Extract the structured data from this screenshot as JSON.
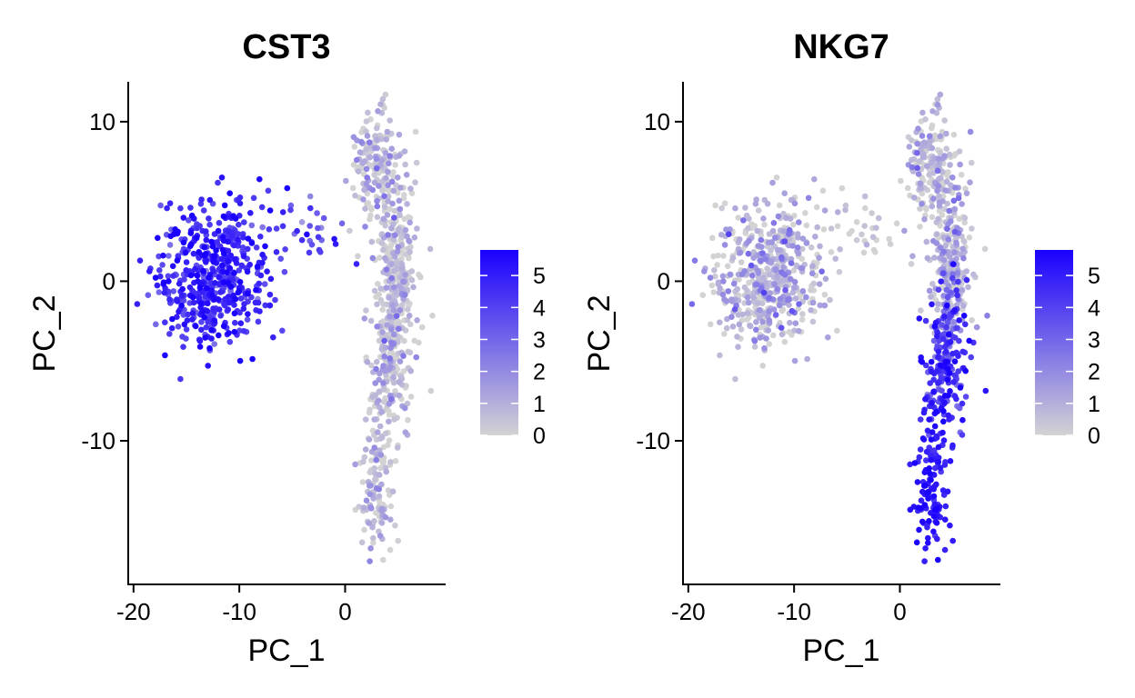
{
  "chart_data": [
    {
      "type": "scatter",
      "title": "CST3",
      "xlabel": "PC_1",
      "ylabel": "PC_2",
      "xlim": [
        -20.5,
        9.5
      ],
      "ylim": [
        -19,
        12.5
      ],
      "xticks": [
        -20,
        -10,
        0
      ],
      "yticks": [
        -10,
        0,
        10
      ],
      "xtick_labels": [
        "-20",
        "-10",
        "0"
      ],
      "ytick_labels": [
        "-10",
        "0",
        "10"
      ],
      "grid": false,
      "legend": {
        "placement": "right",
        "type": "colorbar",
        "range": [
          0,
          5.8
        ],
        "ticks": [
          0,
          1,
          2,
          3,
          4,
          5
        ],
        "tick_labels": [
          "0",
          "1",
          "2",
          "3",
          "4",
          "5"
        ],
        "low_color": "#d3d3d3",
        "high_color": "#1a00ff"
      },
      "clusters": [
        {
          "label": "left cluster",
          "cx": -12.5,
          "cy": 0.5,
          "sx": 2.6,
          "sy": 2.2,
          "n": 520,
          "expr": 4.6,
          "expr_sd": 0.9
        },
        {
          "label": "bridge",
          "cx": -4.0,
          "cy": 3.0,
          "sx": 2.2,
          "sy": 1.2,
          "n": 30,
          "expr": 3.8,
          "expr_sd": 1.0
        },
        {
          "label": "top-right cluster",
          "cx": 3.0,
          "cy": 7.5,
          "sx": 1.2,
          "sy": 1.7,
          "n": 170,
          "expr": 0.5,
          "expr_sd": 1.0
        },
        {
          "label": "right column upper",
          "cx": 4.7,
          "cy": 1.0,
          "sx": 1.0,
          "sy": 2.8,
          "n": 260,
          "expr": 0.3,
          "expr_sd": 0.9
        },
        {
          "label": "right column middle",
          "cx": 4.2,
          "cy": -5.5,
          "sx": 1.0,
          "sy": 2.6,
          "n": 200,
          "expr": 0.4,
          "expr_sd": 0.9
        },
        {
          "label": "right column lower",
          "cx": 3.0,
          "cy": -12.5,
          "sx": 0.9,
          "sy": 2.3,
          "n": 120,
          "expr": 0.4,
          "expr_sd": 0.9
        }
      ]
    },
    {
      "type": "scatter",
      "title": "NKG7",
      "xlabel": "PC_1",
      "ylabel": "PC_2",
      "xlim": [
        -20.5,
        9.5
      ],
      "ylim": [
        -19,
        12.5
      ],
      "xticks": [
        -20,
        -10,
        0
      ],
      "yticks": [
        -10,
        0,
        10
      ],
      "xtick_labels": [
        "-20",
        "-10",
        "0"
      ],
      "ytick_labels": [
        "-10",
        "0",
        "10"
      ],
      "grid": false,
      "legend": {
        "placement": "right",
        "type": "colorbar",
        "range": [
          0,
          5.8
        ],
        "ticks": [
          0,
          1,
          2,
          3,
          4,
          5
        ],
        "tick_labels": [
          "0",
          "1",
          "2",
          "3",
          "4",
          "5"
        ],
        "low_color": "#d3d3d3",
        "high_color": "#1a00ff"
      },
      "clusters": [
        {
          "label": "left cluster",
          "cx": -12.5,
          "cy": 0.5,
          "sx": 2.6,
          "sy": 2.2,
          "n": 520,
          "expr": 0.6,
          "expr_sd": 1.1
        },
        {
          "label": "bridge",
          "cx": -4.0,
          "cy": 3.0,
          "sx": 2.2,
          "sy": 1.2,
          "n": 30,
          "expr": 0.1,
          "expr_sd": 0.4
        },
        {
          "label": "top-right cluster",
          "cx": 3.0,
          "cy": 7.5,
          "sx": 1.2,
          "sy": 1.7,
          "n": 170,
          "expr": 0.4,
          "expr_sd": 0.9
        },
        {
          "label": "right column upper",
          "cx": 4.7,
          "cy": 1.0,
          "sx": 1.0,
          "sy": 2.8,
          "n": 260,
          "expr": 0.8,
          "expr_sd": 1.1
        },
        {
          "label": "right column middle",
          "cx": 4.2,
          "cy": -5.5,
          "sx": 1.0,
          "sy": 2.6,
          "n": 200,
          "expr": 4.3,
          "expr_sd": 1.0
        },
        {
          "label": "right column lower",
          "cx": 3.0,
          "cy": -12.5,
          "sx": 0.9,
          "sy": 2.3,
          "n": 120,
          "expr": 5.1,
          "expr_sd": 0.6
        }
      ]
    }
  ]
}
